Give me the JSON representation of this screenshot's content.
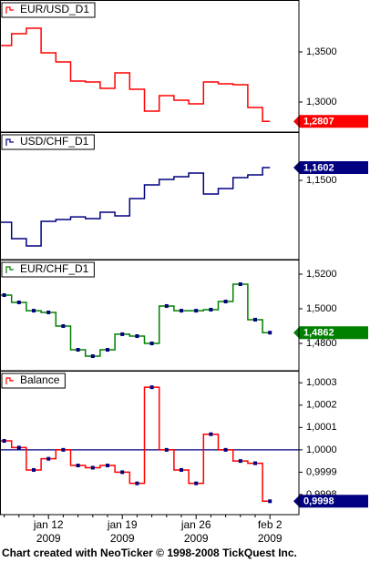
{
  "chart_data": [
    {
      "type": "line",
      "step": true,
      "markers": false,
      "label_color": "#ff0000",
      "ylim": [
        1.27,
        1.4009
      ],
      "yticks": [
        {
          "value": 1.35,
          "label": "1,3500"
        },
        {
          "value": 1.3,
          "label": "1,3000"
        }
      ],
      "series": [
        {
          "name": "EUR/USD_D1",
          "color": "#ff0000",
          "values": [
            1.3564,
            1.3682,
            1.3736,
            1.3491,
            1.34,
            1.3209,
            1.32,
            1.3136,
            1.3291,
            1.3127,
            1.2909,
            1.3064,
            1.3018,
            1.2982,
            1.32,
            1.3182,
            1.3173,
            1.2945,
            1.2807
          ],
          "value_labels": [
            null,
            null,
            null,
            null,
            null,
            null,
            null,
            null,
            null,
            null,
            null,
            null,
            null,
            null,
            null,
            null,
            null,
            null,
            "1,2807"
          ]
        }
      ]
    },
    {
      "type": "line",
      "step": true,
      "markers": false,
      "label_color": "#000080",
      "ylim": [
        1.0866,
        1.1879
      ],
      "yticks": [
        {
          "value": 1.15,
          "label": "1,1500"
        }
      ],
      "series": [
        {
          "name": "USD/CHF_D1",
          "color": "#000080",
          "values": [
            1.1165,
            1.1034,
            1.0975,
            1.1172,
            1.1187,
            1.1208,
            1.1194,
            1.1245,
            1.1216,
            1.1354,
            1.1464,
            1.1507,
            1.1529,
            1.1558,
            1.1391,
            1.1434,
            1.1522,
            1.1544,
            1.1602
          ],
          "value_labels": [
            null,
            null,
            null,
            null,
            null,
            null,
            null,
            null,
            null,
            null,
            null,
            null,
            null,
            null,
            null,
            null,
            null,
            null,
            "1,1602"
          ]
        }
      ]
    },
    {
      "type": "line",
      "step": true,
      "markers": true,
      "marker_color": "#000080",
      "label_color": "#008000",
      "ylim": [
        1.4642,
        1.5279
      ],
      "yticks": [
        {
          "value": 1.52,
          "label": "1,5200"
        },
        {
          "value": 1.5,
          "label": "1,5000"
        },
        {
          "value": 1.48,
          "label": "1,4800"
        }
      ],
      "series": [
        {
          "name": "EUR/CHF_D1",
          "color": "#008000",
          "values": [
            1.5079,
            1.5037,
            1.4989,
            1.4979,
            1.49,
            1.4763,
            1.4726,
            1.4763,
            1.4853,
            1.4842,
            1.48,
            1.5016,
            1.4989,
            1.4989,
            1.4995,
            1.5042,
            1.5142,
            1.4937,
            1.4862
          ],
          "value_labels": [
            null,
            null,
            null,
            null,
            null,
            null,
            null,
            null,
            null,
            null,
            null,
            null,
            null,
            null,
            null,
            null,
            null,
            null,
            "1,4862"
          ]
        }
      ]
    },
    {
      "type": "line",
      "step": true,
      "markers": true,
      "marker_color": "#000080",
      "label_color": "#000080",
      "reference_line": {
        "value": 1,
        "color": "#000080"
      },
      "ylim": [
        0.99971,
        1.00035
      ],
      "yticks": [
        {
          "value": 1.0003,
          "label": "1,0003"
        },
        {
          "value": 1.0002,
          "label": "1,0002"
        },
        {
          "value": 1.0001,
          "label": "1,0001"
        },
        {
          "value": 1,
          "label": "1,0000"
        },
        {
          "value": 0.9999,
          "label": "0,9999"
        },
        {
          "value": 0.9998,
          "label": "0,9998"
        }
      ],
      "categories": [
        null,
        null,
        null,
        [
          "jan 12",
          "2009"
        ],
        null,
        null,
        null,
        null,
        [
          "jan 19",
          "2009"
        ],
        null,
        null,
        null,
        null,
        [
          "jan 26",
          "2009"
        ],
        null,
        null,
        null,
        null,
        [
          "feb 2",
          "2009"
        ]
      ],
      "series": [
        {
          "name": "Balance",
          "color": "#ff0000",
          "values": [
            1.00004,
            1.00001,
            0.99991,
            0.99996,
            1.0,
            0.99993,
            0.99992,
            0.99993,
            0.9999,
            0.99985,
            1.00028,
            1.0,
            0.99991,
            0.99985,
            1.00007,
            1.0,
            0.99995,
            0.99994,
            0.99977
          ],
          "value_labels": [
            null,
            null,
            null,
            null,
            null,
            null,
            null,
            null,
            null,
            null,
            null,
            null,
            null,
            null,
            null,
            null,
            null,
            null,
            "0,9998"
          ]
        }
      ]
    }
  ],
  "footer": "Chart created with NeoTicker © 1998-2008 TickQuest Inc."
}
